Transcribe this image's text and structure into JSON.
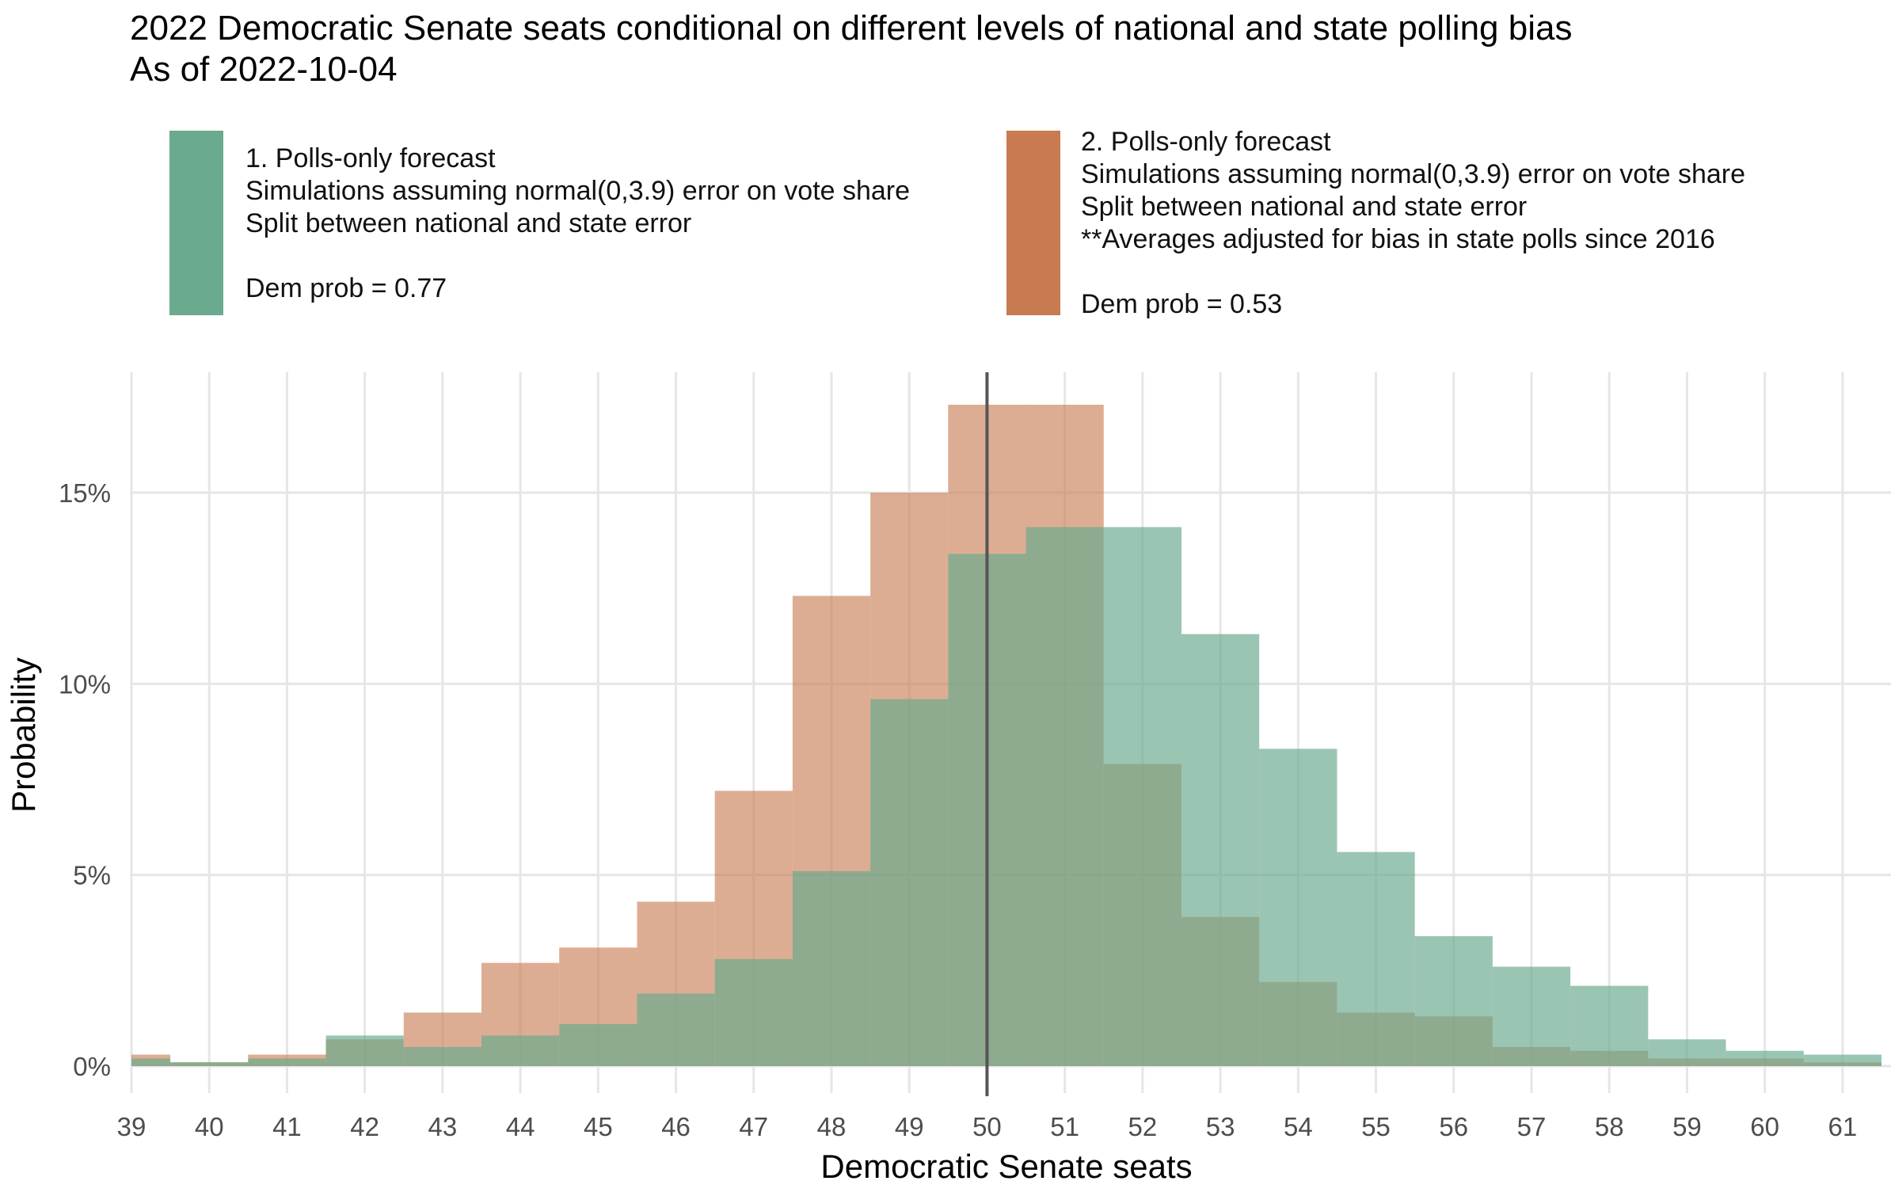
{
  "title": "2022 Democratic Senate seats conditional on different levels of national and state polling bias",
  "subtitle": "As of 2022-10-04",
  "legend": [
    {
      "color": "#6aaa8e",
      "lines": [
        "1. Polls-only forecast",
        "Simulations assuming normal(0,3.9) error on vote share",
        "Split between national and state error",
        "",
        "Dem prob = 0.77"
      ]
    },
    {
      "color": "#c87a50",
      "lines": [
        "2. Polls-only forecast",
        "Simulations assuming normal(0,3.9) error on vote share",
        "Split between national and state error",
        "**Averages adjusted for bias in state polls since 2016",
        "",
        "Dem prob = 0.53"
      ]
    }
  ],
  "colors": {
    "green": "#6aaa8e",
    "orange": "#c87a50",
    "gridline": "#e6e6e6",
    "vline": "#555555"
  },
  "chart_data": {
    "type": "bar",
    "xlabel": "Democratic Senate seats",
    "ylabel": "Probability",
    "xlim": [
      39,
      61
    ],
    "ylim": [
      0,
      17.5
    ],
    "x_ticks": [
      39,
      40,
      41,
      42,
      43,
      44,
      45,
      46,
      47,
      48,
      49,
      50,
      51,
      52,
      53,
      54,
      55,
      56,
      57,
      58,
      59,
      60,
      61
    ],
    "y_ticks": [
      0,
      5,
      10,
      15
    ],
    "y_tick_labels": [
      "0%",
      "5%",
      "10%",
      "15%"
    ],
    "reference_line_x": 50,
    "grid": true,
    "categories": [
      39,
      40,
      41,
      42,
      43,
      44,
      45,
      46,
      47,
      48,
      49,
      50,
      51,
      52,
      53,
      54,
      55,
      56,
      57,
      58,
      59,
      60,
      61
    ],
    "series": [
      {
        "name": "1. Polls-only forecast",
        "color": "#6aaa8e",
        "values": [
          0.2,
          0.1,
          0.2,
          0.8,
          0.5,
          0.8,
          1.1,
          1.9,
          2.8,
          5.1,
          9.6,
          13.4,
          14.1,
          14.1,
          11.3,
          8.3,
          5.6,
          3.4,
          2.6,
          2.1,
          0.7,
          0.4,
          0.3
        ]
      },
      {
        "name": "2. Polls-only forecast",
        "color": "#c87a50",
        "values": [
          0.3,
          0.1,
          0.3,
          0.7,
          1.4,
          2.7,
          3.1,
          4.3,
          7.2,
          12.3,
          15.0,
          17.3,
          17.3,
          7.9,
          3.9,
          2.2,
          1.4,
          1.3,
          0.5,
          0.4,
          0.2,
          0.2,
          0.1
        ]
      }
    ]
  }
}
